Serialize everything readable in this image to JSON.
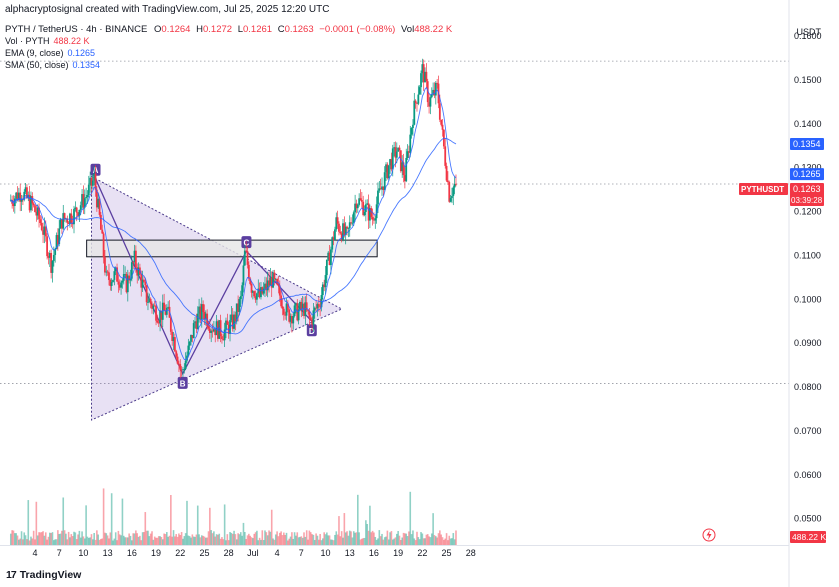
{
  "header": {
    "credit": "alphacryptosignal created with TradingView.com, Jul 25, 2025 12:20 UTC",
    "symbol_line": "PYTH / TetherUS · 4h · BINANCE",
    "open_label": "O",
    "open": "0.1264",
    "high_label": "H",
    "high": "0.1272",
    "low_label": "L",
    "low": "0.1261",
    "close_label": "C",
    "close": "0.1263",
    "change": "−0.0001 (−0.08%)",
    "vol_label": "Vol",
    "vol": "488.22 K",
    "vol_line_label": "Vol · PYTH",
    "vol_line_value": "488.22 K",
    "ema_label": "EMA (9, close)",
    "ema_value": "0.1265",
    "sma_label": "SMA (50, close)",
    "sma_value": "0.1354"
  },
  "currency": "USDT",
  "logo_text": "TradingView",
  "colors": {
    "up": "#089981",
    "down": "#f23645",
    "ema": "#2962ff",
    "sma": "#2962ff",
    "pattern": "#7e57c2",
    "zone_fill": "#e6e6e6"
  },
  "chart_data": {
    "type": "candlestick",
    "symbol": "PYTH / TetherUS",
    "interval": "4h",
    "exchange": "BINANCE",
    "ylim": [
      0.044,
      0.1655
    ],
    "y_ticks": [
      "0.0500",
      "0.0600",
      "0.0700",
      "0.0800",
      "0.0900",
      "0.1000",
      "0.1100",
      "0.1200",
      "0.1300",
      "0.1400",
      "0.1500",
      "0.1600"
    ],
    "x_ticks": [
      {
        "label": "4",
        "day": 4
      },
      {
        "label": "7",
        "day": 7
      },
      {
        "label": "10",
        "day": 10
      },
      {
        "label": "13",
        "day": 13
      },
      {
        "label": "16",
        "day": 16
      },
      {
        "label": "19",
        "day": 19
      },
      {
        "label": "22",
        "day": 22
      },
      {
        "label": "25",
        "day": 25
      },
      {
        "label": "28",
        "day": 28
      },
      {
        "label": "Jul",
        "day": 31
      },
      {
        "label": "4",
        "day": 34
      },
      {
        "label": "7",
        "day": 37
      },
      {
        "label": "10",
        "day": 40
      },
      {
        "label": "13",
        "day": 43
      },
      {
        "label": "16",
        "day": 46
      },
      {
        "label": "19",
        "day": 49
      },
      {
        "label": "22",
        "day": 52
      },
      {
        "label": "25",
        "day": 55
      },
      {
        "label": "28",
        "day": 58
      }
    ],
    "price_path": [
      [
        1.0,
        0.1225
      ],
      [
        2.5,
        0.1245
      ],
      [
        3.8,
        0.1215
      ],
      [
        5.0,
        0.117
      ],
      [
        6.2,
        0.108
      ],
      [
        7.5,
        0.118
      ],
      [
        9.0,
        0.1195
      ],
      [
        10.5,
        0.1235
      ],
      [
        11.5,
        0.1275
      ],
      [
        12.2,
        0.118
      ],
      [
        13.0,
        0.1045
      ],
      [
        14.2,
        0.1055
      ],
      [
        15.5,
        0.1035
      ],
      [
        16.5,
        0.109
      ],
      [
        18.0,
        0.1005
      ],
      [
        19.5,
        0.0965
      ],
      [
        20.5,
        0.0975
      ],
      [
        21.5,
        0.09
      ],
      [
        22.3,
        0.083
      ],
      [
        23.3,
        0.089
      ],
      [
        24.0,
        0.095
      ],
      [
        25.0,
        0.0975
      ],
      [
        26.0,
        0.094
      ],
      [
        27.5,
        0.0925
      ],
      [
        28.8,
        0.095
      ],
      [
        29.7,
        0.1
      ],
      [
        30.2,
        0.111
      ],
      [
        31.0,
        0.103
      ],
      [
        32.0,
        0.1005
      ],
      [
        33.5,
        0.1045
      ],
      [
        34.5,
        0.101
      ],
      [
        35.5,
        0.0965
      ],
      [
        36.5,
        0.097
      ],
      [
        37.5,
        0.098
      ],
      [
        38.3,
        0.095
      ],
      [
        39.5,
        0.1
      ],
      [
        40.5,
        0.1085
      ],
      [
        41.5,
        0.1175
      ],
      [
        42.8,
        0.114
      ],
      [
        44.0,
        0.123
      ],
      [
        45.0,
        0.121
      ],
      [
        46.0,
        0.1185
      ],
      [
        47.0,
        0.125
      ],
      [
        48.0,
        0.1305
      ],
      [
        49.0,
        0.134
      ],
      [
        50.0,
        0.128
      ],
      [
        51.0,
        0.142
      ],
      [
        52.2,
        0.1525
      ],
      [
        53.0,
        0.145
      ],
      [
        54.0,
        0.148
      ],
      [
        54.8,
        0.135
      ],
      [
        55.5,
        0.124
      ],
      [
        56.3,
        0.1263
      ]
    ],
    "ema_value": 0.1265,
    "sma_value": 0.1354,
    "last_price": 0.1263,
    "price_label": "PYTHUSDT",
    "countdown": "03:39:28",
    "volume_label": "488.22 K",
    "horizontal_lines": [
      0.1543,
      0.1263,
      0.0808
    ],
    "resistance_zone": {
      "start_day": 10.4,
      "end_day": 46.4,
      "low": 0.1097,
      "high": 0.1135
    },
    "triangle": {
      "apex_top": {
        "day": 11.0,
        "value": 0.128
      },
      "bottom_left": {
        "day": 11.0,
        "value": 0.0725
      },
      "right": {
        "day": 42.0,
        "value": 0.0978
      }
    },
    "harmonic_points": [
      {
        "label": "A",
        "day": 11.5,
        "value": 0.1275
      },
      {
        "label": "B",
        "day": 22.3,
        "value": 0.083
      },
      {
        "label": "C",
        "day": 30.2,
        "value": 0.111
      },
      {
        "label": "D",
        "day": 38.3,
        "value": 0.095
      }
    ]
  }
}
